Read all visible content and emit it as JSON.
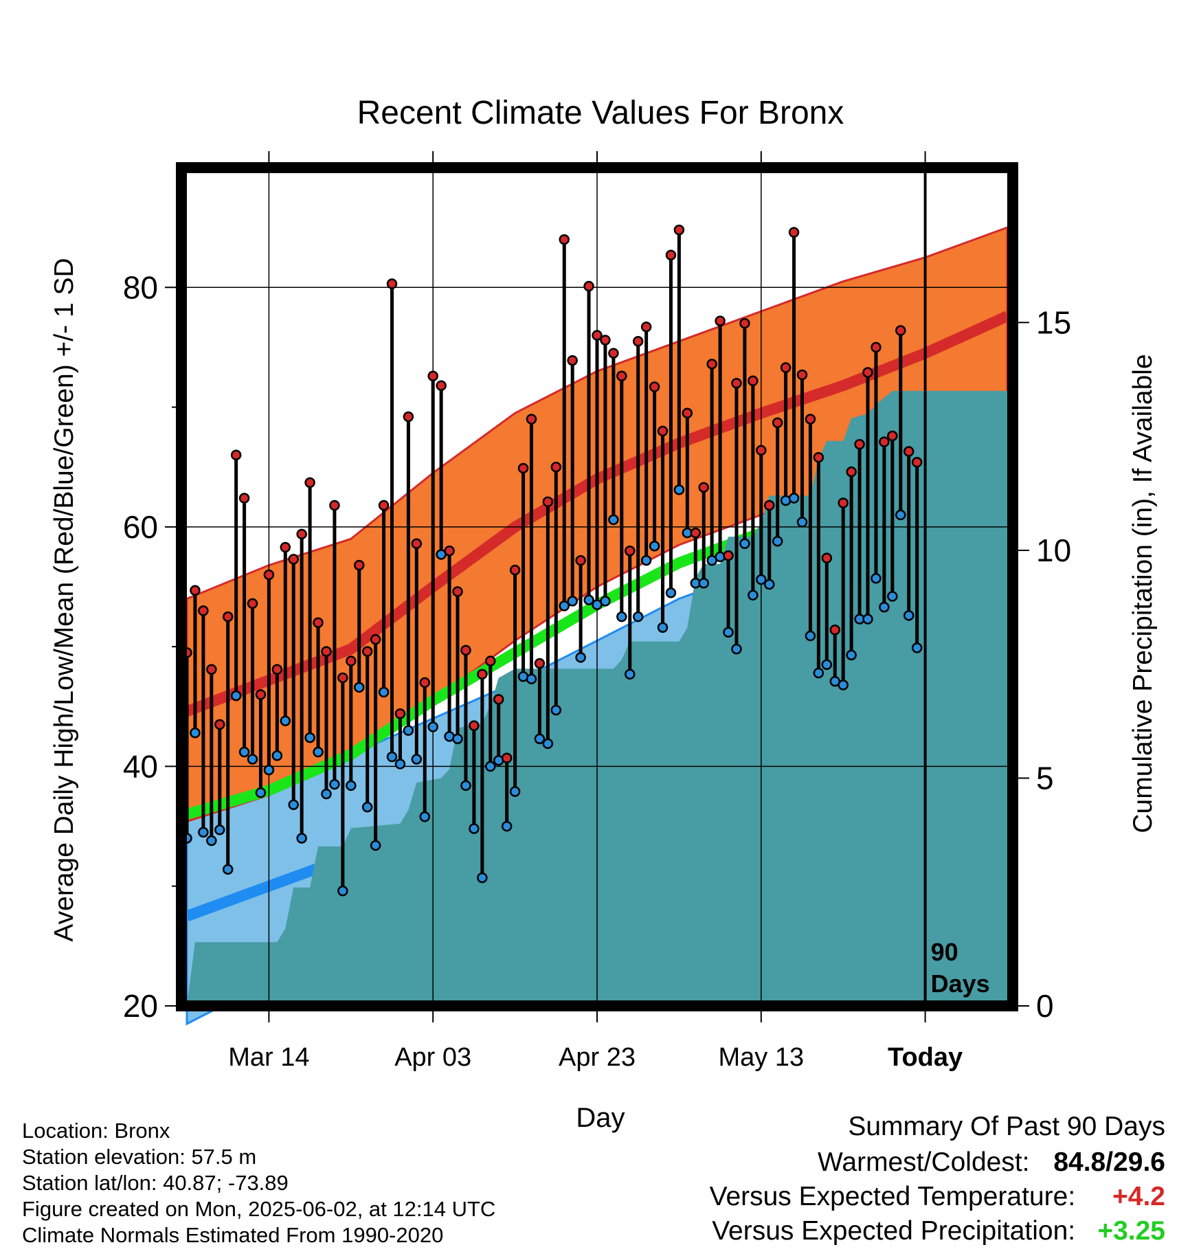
{
  "chart_data": {
    "type": "line",
    "title": "Recent Climate Values For Bronx",
    "xlabel": "Day",
    "ylabel": "Average Daily High/Low/Mean (Red/Blue/Green) +/- 1 SD",
    "y2label": "Cumulative Precipitation (in), If Available",
    "ylim": [
      20,
      90
    ],
    "y2lim": [
      0,
      18.4
    ],
    "yticks": [
      "20",
      "40",
      "60",
      "80"
    ],
    "y2ticks": [
      "0",
      "5",
      "10",
      "15"
    ],
    "x_start": "2025-03-04",
    "xlim_days": [
      0,
      100
    ],
    "xticks": [
      {
        "label": "Mar 14",
        "day": 10
      },
      {
        "label": "Apr 03",
        "day": 30
      },
      {
        "label": "Apr 23",
        "day": 50
      },
      {
        "label": "May 13",
        "day": 70
      },
      {
        "label": "Today",
        "day": 90
      }
    ],
    "today_day": 90,
    "today_label": [
      "90",
      "Days"
    ],
    "grid": true,
    "normals": {
      "high_mean": [
        [
          0,
          44.6
        ],
        [
          10,
          47.2
        ],
        [
          20,
          49.8
        ],
        [
          30,
          55.0
        ],
        [
          40,
          60.0
        ],
        [
          50,
          64.0
        ],
        [
          60,
          67.0
        ],
        [
          70,
          69.5
        ],
        [
          80,
          71.8
        ],
        [
          90,
          74.5
        ],
        [
          100,
          77.6
        ]
      ],
      "high_upper": [
        [
          0,
          54.0
        ],
        [
          10,
          56.8
        ],
        [
          20,
          59.0
        ],
        [
          30,
          64.5
        ],
        [
          40,
          69.5
        ],
        [
          50,
          73.0
        ],
        [
          60,
          75.5
        ],
        [
          70,
          78.0
        ],
        [
          80,
          80.5
        ],
        [
          90,
          82.5
        ],
        [
          100,
          85.0
        ]
      ],
      "high_lower": [
        [
          0,
          35.4
        ],
        [
          10,
          37.6
        ],
        [
          20,
          40.6
        ],
        [
          30,
          45.5
        ],
        [
          40,
          50.5
        ],
        [
          50,
          55.0
        ],
        [
          60,
          58.5
        ],
        [
          70,
          61.0
        ],
        [
          80,
          63.0
        ],
        [
          90,
          66.5
        ],
        [
          100,
          70.2
        ]
      ],
      "avg_mean": [
        [
          0,
          36.0
        ],
        [
          10,
          38.0
        ],
        [
          20,
          41.0
        ],
        [
          30,
          45.5
        ],
        [
          40,
          49.5
        ],
        [
          50,
          53.5
        ],
        [
          60,
          57.0
        ],
        [
          70,
          59.5
        ],
        [
          80,
          62.0
        ],
        [
          90,
          64.8
        ],
        [
          100,
          67.9
        ]
      ],
      "low_mean": [
        [
          0,
          27.5
        ],
        [
          10,
          30.0
        ],
        [
          20,
          32.5
        ],
        [
          30,
          35.5
        ],
        [
          40,
          39.5
        ],
        [
          50,
          43.5
        ],
        [
          60,
          47.0
        ],
        [
          70,
          49.5
        ],
        [
          80,
          52.0
        ],
        [
          90,
          54.5
        ],
        [
          100,
          57.9
        ]
      ],
      "low_upper": [
        [
          0,
          36.8
        ],
        [
          10,
          38.5
        ],
        [
          20,
          41.0
        ],
        [
          30,
          44.0
        ],
        [
          40,
          47.0
        ],
        [
          50,
          50.5
        ],
        [
          60,
          54.0
        ],
        [
          70,
          56.5
        ],
        [
          80,
          59.0
        ],
        [
          90,
          61.5
        ],
        [
          100,
          64.3
        ]
      ],
      "low_lower": [
        [
          0,
          18.5
        ],
        [
          10,
          22.0
        ],
        [
          20,
          25.0
        ],
        [
          30,
          28.5
        ],
        [
          40,
          32.5
        ],
        [
          50,
          37.0
        ],
        [
          60,
          40.5
        ],
        [
          70,
          43.0
        ],
        [
          80,
          45.0
        ],
        [
          90,
          48.5
        ],
        [
          100,
          52.5
        ]
      ]
    },
    "daily": [
      {
        "day": 0,
        "high": 49.5,
        "low": 34.0
      },
      {
        "day": 1,
        "high": 54.7,
        "low": 42.8
      },
      {
        "day": 2,
        "high": 53.0,
        "low": 34.5
      },
      {
        "day": 3,
        "high": 48.1,
        "low": 33.8
      },
      {
        "day": 4,
        "high": 43.5,
        "low": 34.7
      },
      {
        "day": 5,
        "high": 52.5,
        "low": 31.4
      },
      {
        "day": 6,
        "high": 66.0,
        "low": 45.9
      },
      {
        "day": 7,
        "high": 62.4,
        "low": 41.2
      },
      {
        "day": 8,
        "high": 53.6,
        "low": 40.6
      },
      {
        "day": 9,
        "high": 46.0,
        "low": 37.8
      },
      {
        "day": 10,
        "high": 56.0,
        "low": 39.7
      },
      {
        "day": 11,
        "high": 48.1,
        "low": 40.9
      },
      {
        "day": 12,
        "high": 58.3,
        "low": 43.8
      },
      {
        "day": 13,
        "high": 57.3,
        "low": 36.8
      },
      {
        "day": 14,
        "high": 59.4,
        "low": 34.0
      },
      {
        "day": 15,
        "high": 63.7,
        "low": 42.4
      },
      {
        "day": 16,
        "high": 52.0,
        "low": 41.2
      },
      {
        "day": 17,
        "high": 49.6,
        "low": 37.7
      },
      {
        "day": 18,
        "high": 61.8,
        "low": 38.5
      },
      {
        "day": 19,
        "high": 47.4,
        "low": 29.6
      },
      {
        "day": 20,
        "high": 48.8,
        "low": 38.4
      },
      {
        "day": 21,
        "high": 56.8,
        "low": 46.6
      },
      {
        "day": 22,
        "high": 49.6,
        "low": 36.6
      },
      {
        "day": 23,
        "high": 50.6,
        "low": 33.4
      },
      {
        "day": 24,
        "high": 61.8,
        "low": 46.2
      },
      {
        "day": 25,
        "high": 80.3,
        "low": 40.8
      },
      {
        "day": 26,
        "high": 44.4,
        "low": 40.2
      },
      {
        "day": 27,
        "high": 69.2,
        "low": 43.0
      },
      {
        "day": 28,
        "high": 58.6,
        "low": 40.6
      },
      {
        "day": 29,
        "high": 47.0,
        "low": 35.8
      },
      {
        "day": 30,
        "high": 72.6,
        "low": 43.3
      },
      {
        "day": 31,
        "high": 71.8,
        "low": 57.7
      },
      {
        "day": 32,
        "high": 58.0,
        "low": 42.5
      },
      {
        "day": 33,
        "high": 54.6,
        "low": 42.3
      },
      {
        "day": 34,
        "high": 49.7,
        "low": 38.4
      },
      {
        "day": 35,
        "high": 43.4,
        "low": 34.8
      },
      {
        "day": 36,
        "high": 47.7,
        "low": 30.7
      },
      {
        "day": 37,
        "high": 48.8,
        "low": 40.0
      },
      {
        "day": 38,
        "high": 45.6,
        "low": 40.5
      },
      {
        "day": 39,
        "high": 40.7,
        "low": 35.0
      },
      {
        "day": 40,
        "high": 56.4,
        "low": 37.9
      },
      {
        "day": 41,
        "high": 64.9,
        "low": 47.5
      },
      {
        "day": 42,
        "high": 69.0,
        "low": 47.3
      },
      {
        "day": 43,
        "high": 48.6,
        "low": 42.3
      },
      {
        "day": 44,
        "high": 62.1,
        "low": 41.9
      },
      {
        "day": 45,
        "high": 65.0,
        "low": 44.7
      },
      {
        "day": 46,
        "high": 84.0,
        "low": 53.4
      },
      {
        "day": 47,
        "high": 73.9,
        "low": 53.8
      },
      {
        "day": 48,
        "high": 57.2,
        "low": 49.1
      },
      {
        "day": 49,
        "high": 80.1,
        "low": 53.9
      },
      {
        "day": 50,
        "high": 76.0,
        "low": 53.5
      },
      {
        "day": 51,
        "high": 75.6,
        "low": 53.8
      },
      {
        "day": 52,
        "high": 74.5,
        "low": 60.6
      },
      {
        "day": 53,
        "high": 72.6,
        "low": 52.5
      },
      {
        "day": 54,
        "high": 58.0,
        "low": 47.7
      },
      {
        "day": 55,
        "high": 75.5,
        "low": 52.5
      },
      {
        "day": 56,
        "high": 76.7,
        "low": 57.2
      },
      {
        "day": 57,
        "high": 71.7,
        "low": 58.4
      },
      {
        "day": 58,
        "high": 68.0,
        "low": 51.6
      },
      {
        "day": 59,
        "high": 82.7,
        "low": 54.5
      },
      {
        "day": 60,
        "high": 84.8,
        "low": 63.1
      },
      {
        "day": 61,
        "high": 69.5,
        "low": 59.5
      },
      {
        "day": 62,
        "high": 59.5,
        "low": 55.3
      },
      {
        "day": 63,
        "high": 63.3,
        "low": 55.3
      },
      {
        "day": 64,
        "high": 73.6,
        "low": 57.2
      },
      {
        "day": 65,
        "high": 77.2,
        "low": 57.5
      },
      {
        "day": 66,
        "high": 57.6,
        "low": 51.2
      },
      {
        "day": 67,
        "high": 72.0,
        "low": 49.8
      },
      {
        "day": 68,
        "high": 77.0,
        "low": 58.6
      },
      {
        "day": 69,
        "high": 72.2,
        "low": 54.3
      },
      {
        "day": 70,
        "high": 66.4,
        "low": 55.6
      },
      {
        "day": 71,
        "high": 61.8,
        "low": 55.2
      },
      {
        "day": 72,
        "high": 68.7,
        "low": 58.8
      },
      {
        "day": 73,
        "high": 73.3,
        "low": 62.2
      },
      {
        "day": 74,
        "high": 84.6,
        "low": 62.4
      },
      {
        "day": 75,
        "high": 72.7,
        "low": 60.4
      },
      {
        "day": 76,
        "high": 69.0,
        "low": 50.9
      },
      {
        "day": 77,
        "high": 65.8,
        "low": 47.8
      },
      {
        "day": 78,
        "high": 57.4,
        "low": 48.5
      },
      {
        "day": 79,
        "high": 51.4,
        "low": 47.1
      },
      {
        "day": 80,
        "high": 62.0,
        "low": 46.8
      },
      {
        "day": 81,
        "high": 64.6,
        "low": 49.3
      },
      {
        "day": 82,
        "high": 66.9,
        "low": 52.3
      },
      {
        "day": 83,
        "high": 72.9,
        "low": 52.3
      },
      {
        "day": 84,
        "high": 75.0,
        "low": 55.7
      },
      {
        "day": 85,
        "high": 67.1,
        "low": 53.3
      },
      {
        "day": 86,
        "high": 67.6,
        "low": 54.2
      },
      {
        "day": 87,
        "high": 76.4,
        "low": 61.0
      },
      {
        "day": 88,
        "high": 66.3,
        "low": 52.6
      },
      {
        "day": 89,
        "high": 65.4,
        "low": 49.9
      }
    ],
    "precip_cumulative": [
      [
        0,
        0.0
      ],
      [
        1,
        1.4
      ],
      [
        11,
        1.4
      ],
      [
        12,
        1.7
      ],
      [
        13,
        2.6
      ],
      [
        15,
        2.6
      ],
      [
        16,
        3.5
      ],
      [
        19,
        3.5
      ],
      [
        20,
        3.9
      ],
      [
        26,
        4.0
      ],
      [
        27,
        4.3
      ],
      [
        28,
        4.9
      ],
      [
        31,
        5.0
      ],
      [
        32,
        5.2
      ],
      [
        33,
        6.1
      ],
      [
        36,
        6.2
      ],
      [
        37,
        6.6
      ],
      [
        38,
        7.2
      ],
      [
        40,
        7.4
      ],
      [
        52,
        7.4
      ],
      [
        53,
        7.6
      ],
      [
        54,
        8.0
      ],
      [
        60,
        8.0
      ],
      [
        61,
        8.3
      ],
      [
        62,
        9.4
      ],
      [
        63,
        9.7
      ],
      [
        65,
        9.7
      ],
      [
        66,
        10.3
      ],
      [
        69,
        10.3
      ],
      [
        70,
        10.6
      ],
      [
        71,
        11.2
      ],
      [
        76,
        11.2
      ],
      [
        77,
        12.0
      ],
      [
        78,
        12.4
      ],
      [
        80,
        12.4
      ],
      [
        81,
        12.9
      ],
      [
        83,
        13.0
      ],
      [
        84,
        13.2
      ],
      [
        86,
        13.5
      ],
      [
        100,
        13.5
      ]
    ],
    "colors": {
      "high_band": "#f37a30",
      "high_line": "#d52a2a",
      "low_band": "#7fc0e8",
      "low_line": "#1e8cf0",
      "mean_line": "#19e619",
      "precip": "#489ca3",
      "high_dot": "#d62828",
      "low_dot": "#2a8ddc"
    }
  },
  "metadata_lines": [
    "Location: Bronx",
    "Station elevation: 57.5 m",
    "Station lat/lon: 40.87; -73.89",
    "Figure created on Mon, 2025-06-02, at 12:14 UTC",
    "Climate Normals Estimated From 1990-2020"
  ],
  "summary": {
    "heading": "Summary Of Past 90 Days",
    "warm_cold_label": "Warmest/Coldest:",
    "warm_cold_value": "84.8/29.6",
    "temp_label": "Versus Expected Temperature:",
    "temp_value": "+4.2",
    "temp_color": "#d62828",
    "precip_label": "Versus Expected Precipitation:",
    "precip_value": "+3.25",
    "precip_color": "#22cc22"
  }
}
